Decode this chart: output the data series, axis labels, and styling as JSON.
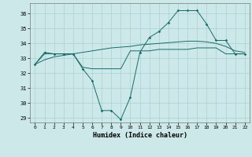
{
  "xlabel": "Humidex (Indice chaleur)",
  "ylabel": "",
  "background_color": "#cce8e8",
  "grid_color": "#aad0d0",
  "line_color": "#1a6b6b",
  "xlim": [
    -0.5,
    22.5
  ],
  "ylim": [
    28.7,
    36.7
  ],
  "yticks": [
    29,
    30,
    31,
    32,
    33,
    34,
    35,
    36
  ],
  "xticks": [
    0,
    1,
    2,
    3,
    4,
    5,
    6,
    7,
    8,
    9,
    10,
    11,
    12,
    13,
    14,
    15,
    16,
    17,
    18,
    19,
    20,
    21,
    22
  ],
  "line1_x": [
    0,
    1,
    2,
    3,
    4,
    5,
    6,
    7,
    8,
    9,
    10,
    11,
    12,
    13,
    14,
    15,
    16,
    17,
    18,
    19,
    20,
    21,
    22
  ],
  "line1_y": [
    32.6,
    33.3,
    33.3,
    33.3,
    33.3,
    32.4,
    32.3,
    32.3,
    32.3,
    32.3,
    33.5,
    33.5,
    33.5,
    33.6,
    33.6,
    33.6,
    33.6,
    33.7,
    33.7,
    33.7,
    33.3,
    33.3,
    33.3
  ],
  "line2_x": [
    0,
    1,
    2,
    3,
    4,
    5,
    6,
    7,
    8,
    9,
    10,
    11,
    12,
    13,
    14,
    15,
    16,
    17,
    18,
    19,
    20,
    21,
    22
  ],
  "line2_y": [
    32.6,
    33.4,
    33.3,
    33.3,
    33.3,
    32.3,
    31.5,
    29.5,
    29.5,
    28.9,
    30.4,
    33.4,
    34.4,
    34.8,
    35.4,
    36.2,
    36.2,
    36.2,
    35.3,
    34.2,
    34.2,
    33.3,
    33.3
  ],
  "line3_x": [
    0,
    1,
    2,
    3,
    4,
    5,
    6,
    7,
    8,
    9,
    10,
    11,
    12,
    13,
    14,
    15,
    16,
    17,
    18,
    19,
    20,
    21,
    22
  ],
  "line3_y": [
    32.6,
    32.9,
    33.1,
    33.2,
    33.3,
    33.4,
    33.5,
    33.6,
    33.7,
    33.75,
    33.8,
    33.9,
    33.95,
    34.0,
    34.05,
    34.1,
    34.15,
    34.15,
    34.1,
    34.0,
    33.8,
    33.5,
    33.4
  ]
}
